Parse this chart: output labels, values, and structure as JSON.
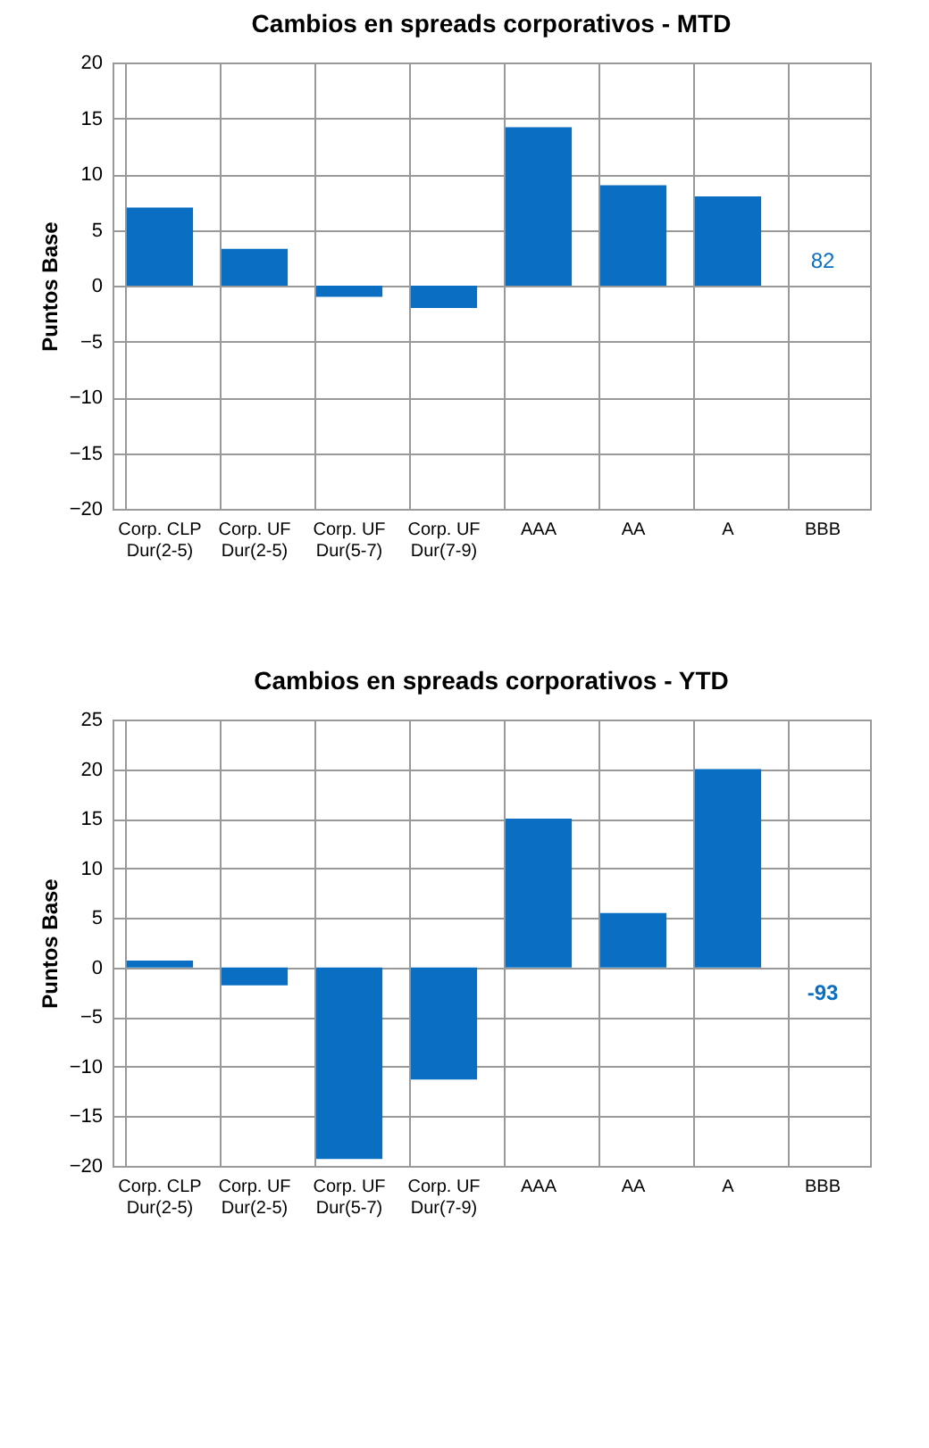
{
  "chart_data": [
    {
      "type": "bar",
      "title": "Cambios en spreads corporativos - MTD",
      "ylabel": "Puntos Base",
      "categories": [
        "Corp. CLP Dur(2-5)",
        "Corp. UF Dur(2-5)",
        "Corp. UF Dur(5-7)",
        "Corp. UF Dur(7-9)",
        "AAA",
        "AA",
        "A",
        "BBB"
      ],
      "values": [
        7,
        3.3,
        -1,
        -2,
        14.2,
        9,
        8,
        null
      ],
      "value_labels": [
        null,
        null,
        null,
        null,
        null,
        null,
        null,
        "82"
      ],
      "color": "#0a6fc2",
      "ylim": [
        -20,
        20
      ],
      "yticks": [
        -20,
        -15,
        -10,
        -5,
        0,
        5,
        10,
        15,
        20
      ],
      "grid": true
    },
    {
      "type": "bar",
      "title": "Cambios en spreads corporativos - YTD",
      "ylabel": "Puntos Base",
      "categories": [
        "Corp. CLP Dur(2-5)",
        "Corp. UF Dur(2-5)",
        "Corp. UF Dur(5-7)",
        "Corp. UF Dur(7-9)",
        "AAA",
        "AA",
        "A",
        "BBB"
      ],
      "values": [
        0.7,
        -1.8,
        -19.3,
        -11.3,
        15,
        5.5,
        20,
        null
      ],
      "value_labels": [
        null,
        null,
        null,
        null,
        null,
        null,
        null,
        "-93"
      ],
      "color": "#0a6fc2",
      "ylim": [
        -20,
        25
      ],
      "yticks": [
        -20,
        -15,
        -10,
        -5,
        0,
        5,
        10,
        15,
        20,
        25
      ],
      "grid": true
    }
  ]
}
